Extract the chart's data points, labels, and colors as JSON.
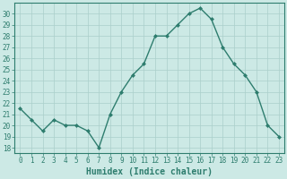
{
  "x": [
    0,
    1,
    2,
    3,
    4,
    5,
    6,
    7,
    8,
    9,
    10,
    11,
    12,
    13,
    14,
    15,
    16,
    17,
    18,
    19,
    20,
    21,
    22,
    23
  ],
  "y": [
    21.5,
    20.5,
    19.5,
    20.5,
    20.0,
    20.0,
    19.5,
    18.0,
    21.0,
    23.0,
    24.5,
    25.5,
    28.0,
    28.0,
    29.0,
    30.0,
    30.5,
    29.5,
    27.0,
    25.5,
    24.5,
    23.0,
    20.0,
    19.0
  ],
  "line_color": "#2e7d6e",
  "marker": "D",
  "marker_size": 2.0,
  "line_width": 1.0,
  "background_color": "#cce9e5",
  "grid_color": "#aacfca",
  "xlabel": "Humidex (Indice chaleur)",
  "xlabel_fontsize": 7,
  "ylabel_ticks": [
    18,
    19,
    20,
    21,
    22,
    23,
    24,
    25,
    26,
    27,
    28,
    29,
    30
  ],
  "ylim": [
    17.5,
    31.0
  ],
  "xlim": [
    -0.5,
    23.5
  ],
  "xtick_labels": [
    "0",
    "1",
    "2",
    "3",
    "4",
    "5",
    "6",
    "7",
    "8",
    "9",
    "10",
    "11",
    "12",
    "13",
    "14",
    "15",
    "16",
    "17",
    "18",
    "19",
    "20",
    "21",
    "22",
    "23"
  ],
  "tick_fontsize": 5.5,
  "spine_color": "#2e7d6e",
  "text_color": "#2e7d6e"
}
